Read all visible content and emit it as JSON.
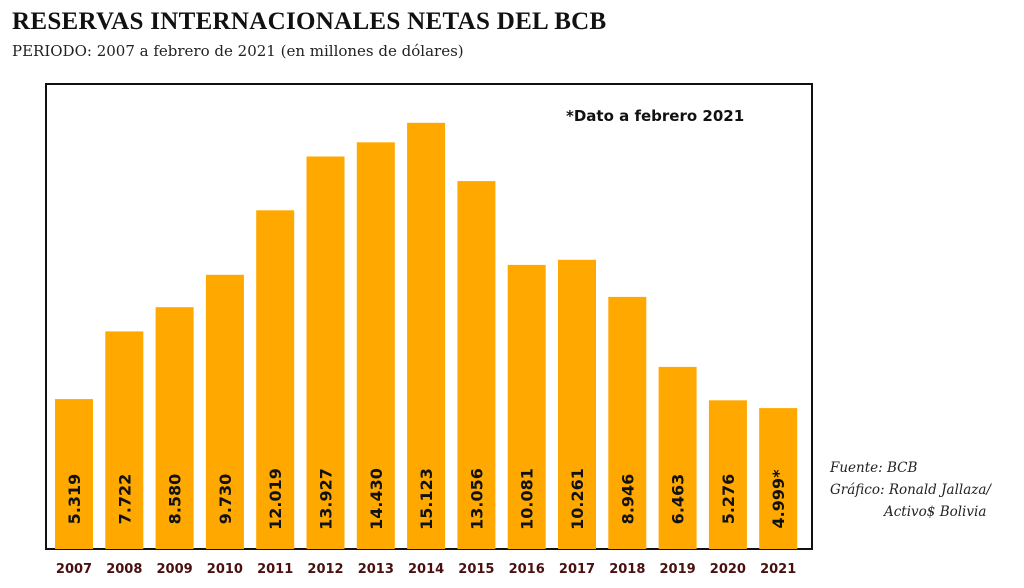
{
  "header": {
    "title": "RESERVAS INTERNACIONALES NETAS DEL BCB",
    "subtitle": "PERIODO: 2007 a febrero de 2021 (en millones de dólares)"
  },
  "credits": {
    "source": "Fuente: BCB",
    "graphic_line1": "Gráfico: Ronald Jallaza/",
    "graphic_line2": "Activo$ Bolivia"
  },
  "colors": {
    "bar": "#FFA800",
    "tick_text": "#4a1010",
    "axis": "#111111"
  },
  "chart_data": {
    "type": "bar",
    "title": "RESERVAS INTERNACIONALES NETAS DEL BCB",
    "subtitle": "PERIODO: 2007 a febrero de 2021 (en millones de dólares)",
    "categories": [
      "2007",
      "2008",
      "2009",
      "2010",
      "2011",
      "2012",
      "2013",
      "2014",
      "2015",
      "2016",
      "2017",
      "2018",
      "2019",
      "2020",
      "2021"
    ],
    "values": [
      5319,
      7722,
      8580,
      9730,
      12019,
      13927,
      14430,
      15123,
      13056,
      10081,
      10261,
      8946,
      6463,
      5276,
      4999
    ],
    "value_labels": [
      "5.319",
      "7.722",
      "8.580",
      "9.730",
      "12.019",
      "13.927",
      "14.430",
      "15.123",
      "13.056",
      "10.081",
      "10.261",
      "8.946",
      "6.463",
      "5.276",
      "4.999*"
    ],
    "annotation": "*Dato a febrero 2021",
    "xlabel": "",
    "ylabel": "",
    "ylim": [
      0,
      16500
    ],
    "grid": false,
    "legend": "none"
  }
}
